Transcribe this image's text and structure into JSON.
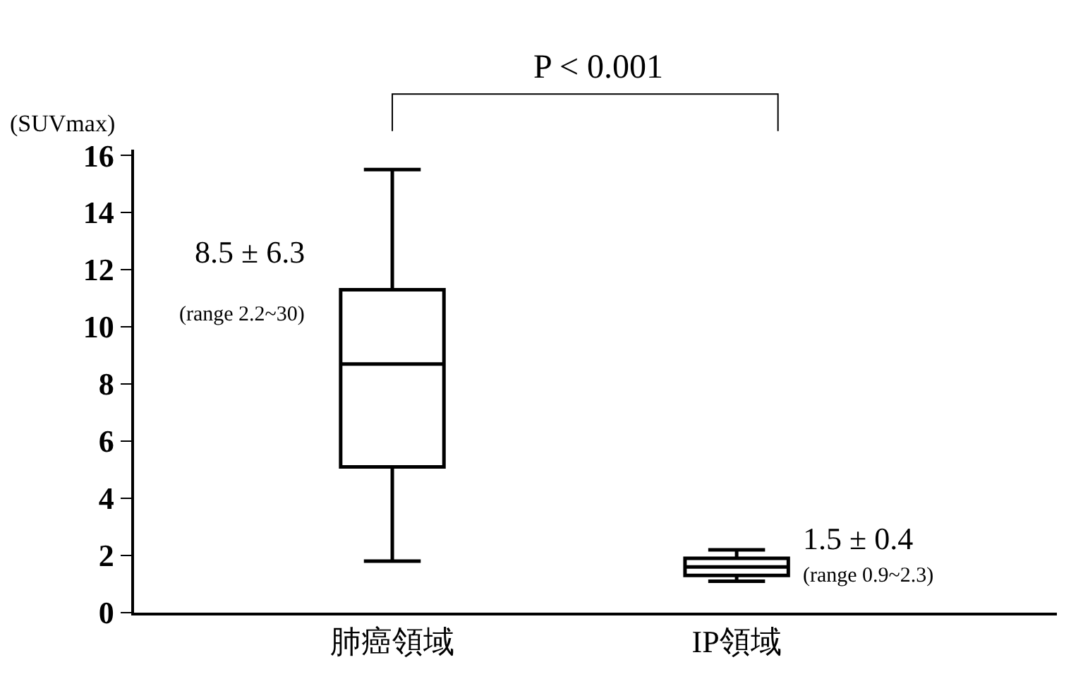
{
  "chart_data": {
    "type": "box",
    "ylabel": "(SUVmax)",
    "categories": [
      "肺癌領域",
      "IP領域"
    ],
    "series": [
      {
        "color": "#000000",
        "boxes": [
          {
            "low": 1.8,
            "q1": 5.1,
            "median": 8.7,
            "q3": 11.3,
            "high": 15.5
          },
          {
            "low": 1.1,
            "q1": 1.3,
            "median": 1.6,
            "q3": 1.9,
            "high": 2.2
          }
        ]
      }
    ],
    "ylim": [
      0,
      16.2
    ],
    "yticks": [
      0,
      2,
      4,
      6,
      8,
      10,
      12,
      14,
      16
    ],
    "grid": false,
    "annotations": [
      "P < 0.001",
      "8.5 ± 6.3",
      "(range 2.2~30)",
      "1.5 ± 0.4",
      "(range 0.9~2.3)"
    ]
  }
}
